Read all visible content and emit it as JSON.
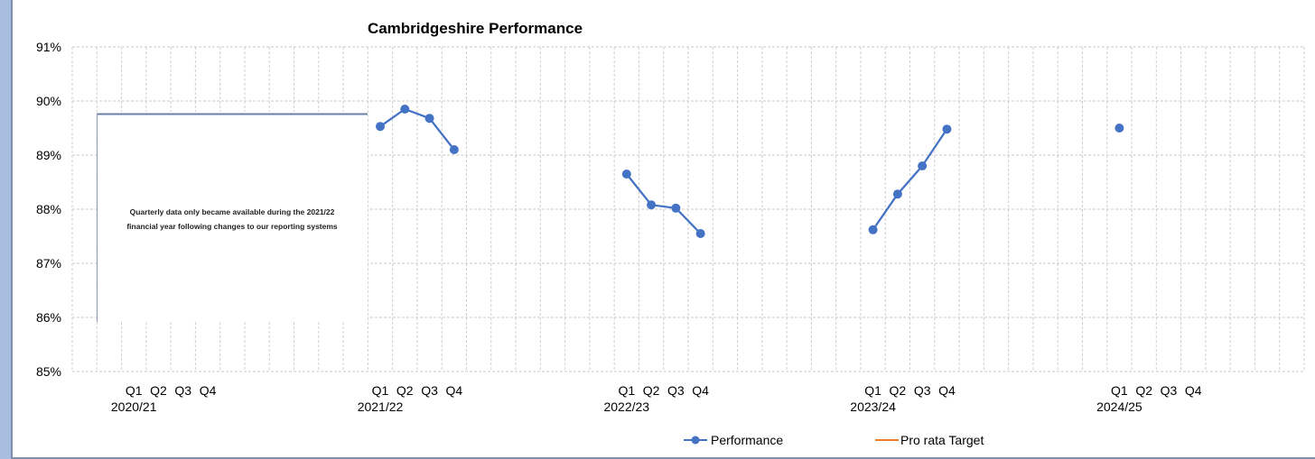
{
  "chart_data": {
    "type": "line",
    "title": "Cambridgeshire Performance",
    "ylim": [
      85,
      91
    ],
    "y_tick_labels": [
      "85%",
      "86%",
      "87%",
      "88%",
      "89%",
      "90%",
      "91%"
    ],
    "y_ticks": [
      85,
      86,
      87,
      88,
      89,
      90,
      91
    ],
    "grid": true,
    "legend_position": "bottom",
    "groups": [
      {
        "year": "2020/21",
        "quarters": [
          "Q1",
          "Q2",
          "Q3",
          "Q4"
        ]
      },
      {
        "year": "2021/22",
        "quarters": [
          "Q1",
          "Q2",
          "Q3",
          "Q4"
        ]
      },
      {
        "year": "2022/23",
        "quarters": [
          "Q1",
          "Q2",
          "Q3",
          "Q4"
        ]
      },
      {
        "year": "2023/24",
        "quarters": [
          "Q1",
          "Q2",
          "Q3",
          "Q4"
        ]
      },
      {
        "year": "2024/25",
        "quarters": [
          "Q1",
          "Q2",
          "Q3",
          "Q4"
        ]
      }
    ],
    "series": [
      {
        "name": "Performance",
        "color": "#4472c4",
        "values": [
          [
            null,
            null,
            null,
            null
          ],
          [
            89.53,
            89.85,
            89.68,
            89.1
          ],
          [
            88.65,
            88.08,
            88.02,
            87.55
          ],
          [
            87.62,
            88.28,
            88.8,
            89.48
          ],
          [
            89.5,
            null,
            null,
            null
          ]
        ]
      },
      {
        "name": "Pro rata Target",
        "color": "#ed7d31",
        "values": [
          [
            null,
            null,
            null,
            null
          ],
          [
            null,
            null,
            null,
            null
          ],
          [
            null,
            null,
            null,
            null
          ],
          [
            null,
            null,
            null,
            null
          ],
          [
            null,
            null,
            null,
            null
          ]
        ]
      }
    ],
    "annotation": "Quarterly data only became available during the 2021/22 financial year following changes to our reporting systems"
  }
}
